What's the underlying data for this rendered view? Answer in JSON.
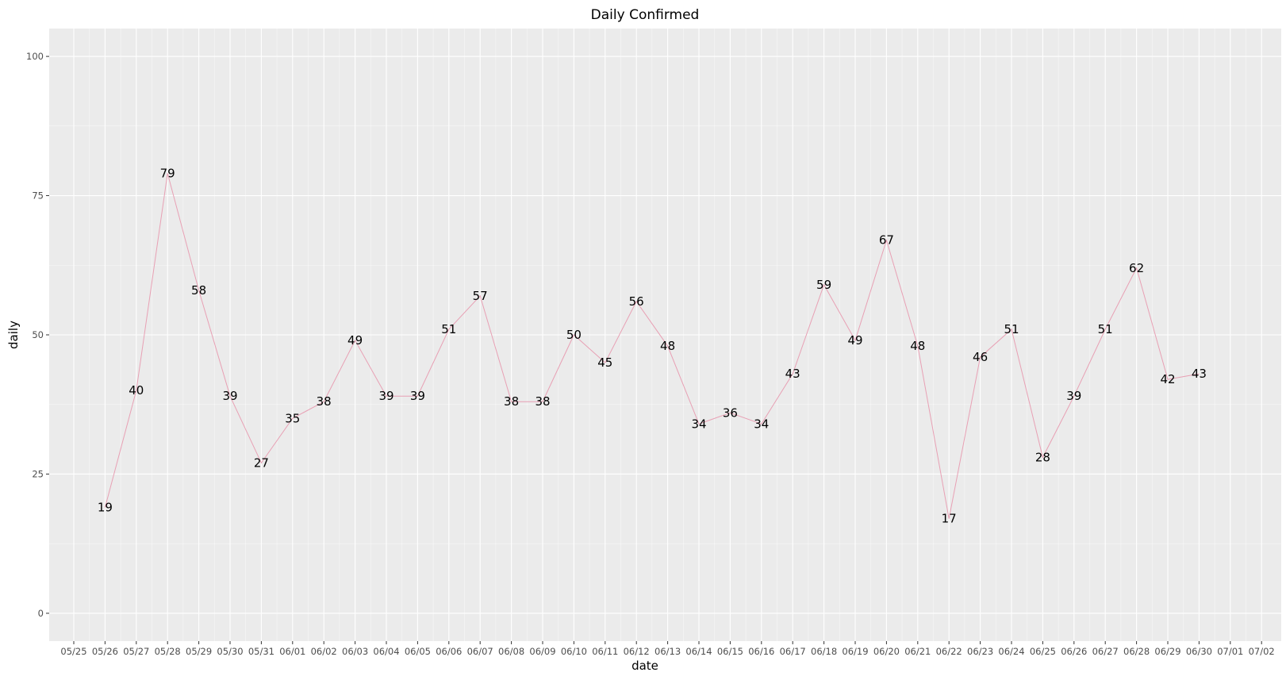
{
  "chart_data": {
    "type": "line",
    "title": "Daily Confirmed",
    "xlabel": "date",
    "ylabel": "daily",
    "ylim": [
      -5,
      105
    ],
    "yticks": [
      0,
      25,
      50,
      75,
      100
    ],
    "grid": true,
    "line_color": "#e8a0b4",
    "panel_color": "#ebebeb",
    "categories": [
      "05/25",
      "05/26",
      "05/27",
      "05/28",
      "05/29",
      "05/30",
      "05/31",
      "06/01",
      "06/02",
      "06/03",
      "06/04",
      "06/05",
      "06/06",
      "06/07",
      "06/08",
      "06/09",
      "06/10",
      "06/11",
      "06/12",
      "06/13",
      "06/14",
      "06/15",
      "06/16",
      "06/17",
      "06/18",
      "06/19",
      "06/20",
      "06/21",
      "06/22",
      "06/23",
      "06/24",
      "06/25",
      "06/26",
      "06/27",
      "06/28",
      "06/29",
      "06/30",
      "07/01",
      "07/02"
    ],
    "x": [
      "05/26",
      "05/27",
      "05/28",
      "05/29",
      "05/30",
      "05/31",
      "06/01",
      "06/02",
      "06/03",
      "06/04",
      "06/05",
      "06/06",
      "06/07",
      "06/08",
      "06/09",
      "06/10",
      "06/11",
      "06/12",
      "06/13",
      "06/14",
      "06/15",
      "06/16",
      "06/17",
      "06/18",
      "06/19",
      "06/20",
      "06/21",
      "06/22",
      "06/23",
      "06/24",
      "06/25",
      "06/26",
      "06/27",
      "06/28",
      "06/29",
      "06/30"
    ],
    "values": [
      19,
      40,
      79,
      58,
      39,
      27,
      35,
      38,
      49,
      39,
      39,
      51,
      57,
      38,
      38,
      50,
      45,
      56,
      48,
      34,
      36,
      34,
      43,
      59,
      49,
      67,
      48,
      17,
      46,
      51,
      28,
      39,
      51,
      62,
      42,
      43
    ]
  }
}
